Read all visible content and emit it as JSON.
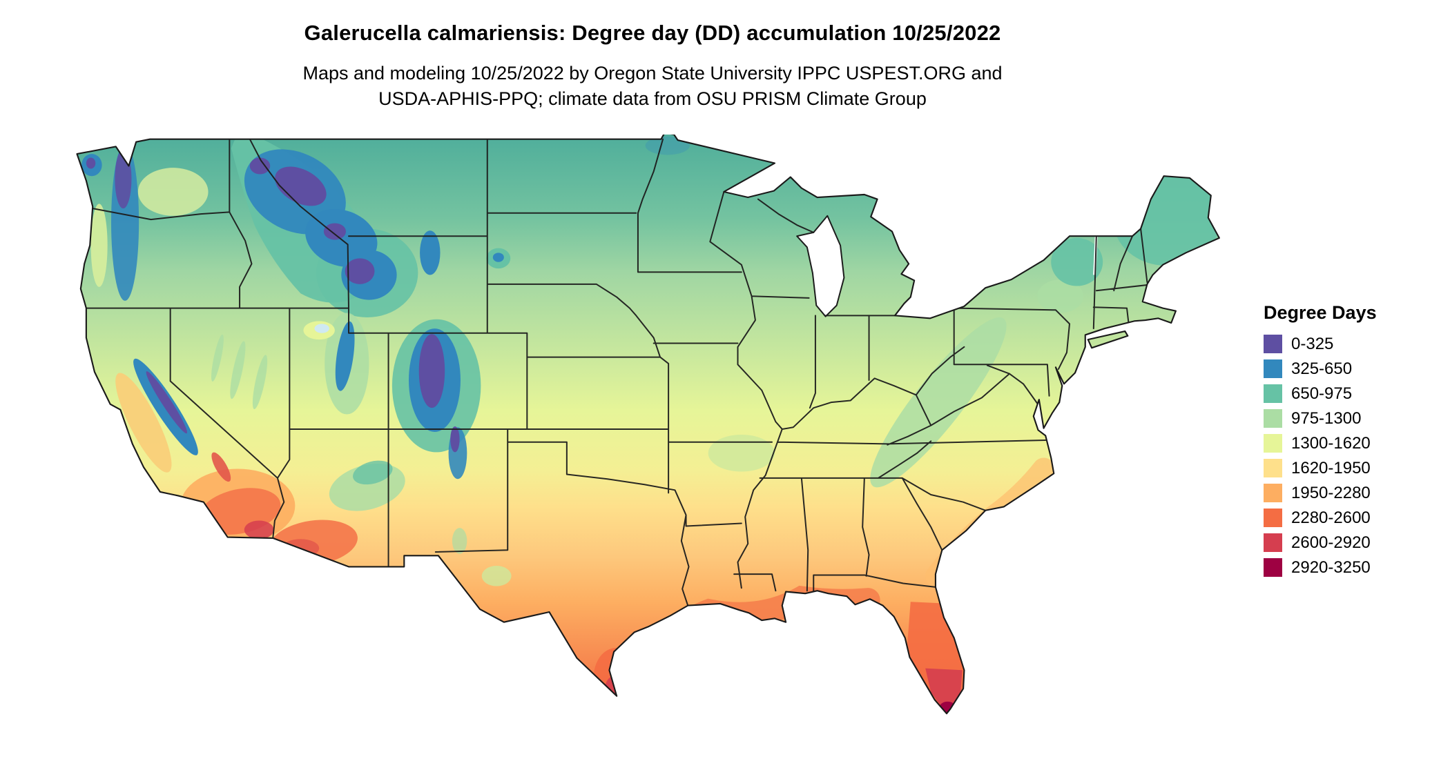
{
  "title": "Galerucella calmariensis: Degree day (DD) accumulation 10/25/2022",
  "subtitle_line1": "Maps and modeling 10/25/2022 by Oregon State University IPPC USPEST.ORG and",
  "subtitle_line2": "USDA-APHIS-PPQ; climate data from OSU PRISM Climate Group",
  "map": {
    "type": "degree-day raster choropleth",
    "region": "Contiguous United States"
  },
  "legend": {
    "title": "Degree Days",
    "entries": [
      {
        "label": "0-325",
        "color": "#5e4fa2"
      },
      {
        "label": "325-650",
        "color": "#3288bd"
      },
      {
        "label": "650-975",
        "color": "#66c2a5"
      },
      {
        "label": "975-1300",
        "color": "#abdda4"
      },
      {
        "label": "1300-1620",
        "color": "#e6f598"
      },
      {
        "label": "1620-1950",
        "color": "#fee08b"
      },
      {
        "label": "1950-2280",
        "color": "#fdae61"
      },
      {
        "label": "2280-2600",
        "color": "#f46d43"
      },
      {
        "label": "2600-2920",
        "color": "#d53e4f"
      },
      {
        "label": "2920-3250",
        "color": "#9e0142"
      }
    ]
  }
}
